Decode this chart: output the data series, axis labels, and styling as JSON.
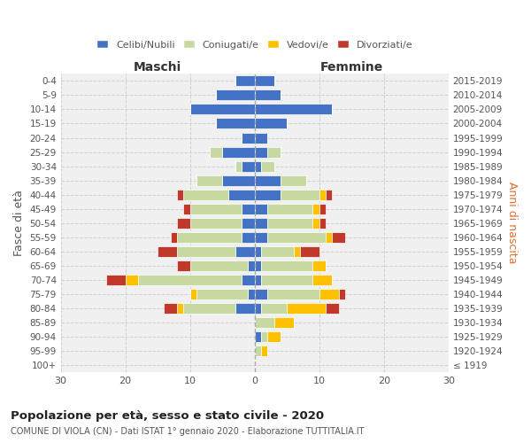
{
  "age_groups": [
    "0-4",
    "5-9",
    "10-14",
    "15-19",
    "20-24",
    "25-29",
    "30-34",
    "35-39",
    "40-44",
    "45-49",
    "50-54",
    "55-59",
    "60-64",
    "65-69",
    "70-74",
    "75-79",
    "80-84",
    "85-89",
    "90-94",
    "95-99",
    "100+"
  ],
  "birth_years": [
    "2015-2019",
    "2010-2014",
    "2005-2009",
    "2000-2004",
    "1995-1999",
    "1990-1994",
    "1985-1989",
    "1980-1984",
    "1975-1979",
    "1970-1974",
    "1965-1969",
    "1960-1964",
    "1955-1959",
    "1950-1954",
    "1945-1949",
    "1940-1944",
    "1935-1939",
    "1930-1934",
    "1925-1929",
    "1920-1924",
    "≤ 1919"
  ],
  "male": {
    "celibe": [
      3,
      6,
      10,
      6,
      2,
      5,
      2,
      5,
      4,
      2,
      2,
      2,
      3,
      1,
      2,
      1,
      3,
      0,
      0,
      0,
      0
    ],
    "coniugato": [
      0,
      0,
      0,
      0,
      0,
      2,
      1,
      4,
      7,
      8,
      8,
      10,
      9,
      9,
      16,
      8,
      8,
      0,
      0,
      0,
      0
    ],
    "vedovo": [
      0,
      0,
      0,
      0,
      0,
      0,
      0,
      0,
      0,
      0,
      0,
      0,
      0,
      0,
      2,
      1,
      1,
      0,
      0,
      0,
      0
    ],
    "divorziato": [
      0,
      0,
      0,
      0,
      0,
      0,
      0,
      0,
      1,
      1,
      2,
      1,
      3,
      2,
      3,
      0,
      2,
      0,
      0,
      0,
      0
    ]
  },
  "female": {
    "nubile": [
      3,
      4,
      12,
      5,
      2,
      2,
      1,
      4,
      4,
      2,
      2,
      2,
      1,
      1,
      1,
      2,
      1,
      0,
      1,
      0,
      0
    ],
    "coniugata": [
      0,
      0,
      0,
      0,
      0,
      2,
      2,
      4,
      6,
      7,
      7,
      9,
      5,
      8,
      8,
      8,
      4,
      3,
      1,
      1,
      0
    ],
    "vedova": [
      0,
      0,
      0,
      0,
      0,
      0,
      0,
      0,
      1,
      1,
      1,
      1,
      1,
      2,
      3,
      3,
      6,
      3,
      2,
      1,
      0
    ],
    "divorziata": [
      0,
      0,
      0,
      0,
      0,
      0,
      0,
      0,
      1,
      1,
      1,
      2,
      3,
      0,
      0,
      1,
      2,
      0,
      0,
      0,
      0
    ]
  },
  "colors": {
    "celibe_nubile": "#4472c4",
    "coniugato_coniugata": "#c5d9a0",
    "vedovo_vedova": "#ffc000",
    "divorziato_divorziata": "#c0392b"
  },
  "title": "Popolazione per età, sesso e stato civile - 2020",
  "subtitle": "COMUNE DI VIOLA (CN) - Dati ISTAT 1° gennaio 2020 - Elaborazione TUTTITALIA.IT",
  "ylabel_left": "Fasce di età",
  "ylabel_right": "Anni di nascita",
  "xlabel_left": "Maschi",
  "xlabel_right": "Femmine",
  "xlim": 30,
  "legend_labels": [
    "Celibi/Nubili",
    "Coniugati/e",
    "Vedovi/e",
    "Divorziati/e"
  ],
  "background_color": "#ffffff",
  "grid_color": "#cccccc"
}
